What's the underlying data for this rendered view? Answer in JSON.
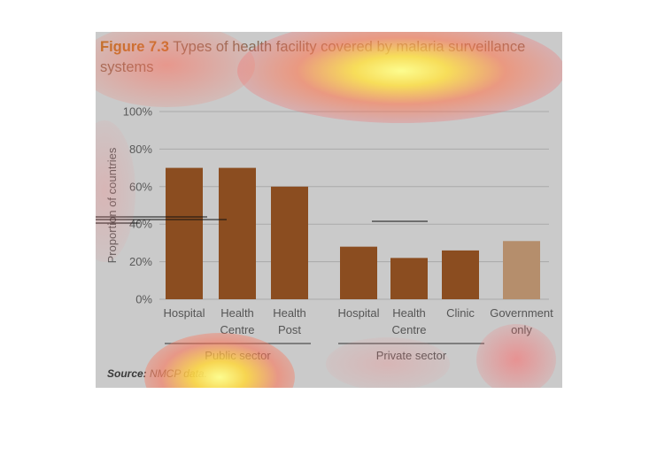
{
  "figure": {
    "number": "Figure 7.3",
    "title_rest": " Types of health facility covered by malaria surveillance systems",
    "source_label": "Source:",
    "source_text": " NMCP data."
  },
  "chart_data": {
    "type": "bar",
    "title": "Figure 7.3 Types of health facility covered by malaria surveillance systems",
    "ylabel": "Proportion of countries",
    "xlabel": "",
    "ylim": [
      0,
      100
    ],
    "yticks": [
      0,
      20,
      40,
      60,
      80,
      100
    ],
    "ytick_labels": [
      "0%",
      "20%",
      "40%",
      "60%",
      "80%",
      "100%"
    ],
    "grid": true,
    "categories": [
      {
        "label": [
          "Hospital"
        ],
        "group": "Public sector",
        "value": 70,
        "color": "#8b4d20"
      },
      {
        "label": [
          "Health",
          "Centre"
        ],
        "group": "Public sector",
        "value": 70,
        "color": "#8b4d20"
      },
      {
        "label": [
          "Health",
          "Post"
        ],
        "group": "Public sector",
        "value": 60,
        "color": "#8b4d20"
      },
      {
        "label": [
          "Hospital"
        ],
        "group": "Private sector",
        "value": 28,
        "color": "#8b4d20"
      },
      {
        "label": [
          "Health",
          "Centre"
        ],
        "group": "Private sector",
        "value": 22,
        "color": "#8b4d20"
      },
      {
        "label": [
          "Clinic"
        ],
        "group": "Private sector",
        "value": 26,
        "color": "#8b4d20"
      },
      {
        "label": [
          "Government",
          "only"
        ],
        "group": "",
        "value": 31,
        "color": "#b58e6c"
      }
    ],
    "groups": [
      {
        "name": "Public sector"
      },
      {
        "name": "Private sector"
      }
    ]
  },
  "colors": {
    "bar_main": "#8b4d20",
    "bar_light": "#b58e6c",
    "panel_bg": "#cacaca",
    "grid": "#a9a9a9",
    "title_accent": "#b6701f"
  }
}
